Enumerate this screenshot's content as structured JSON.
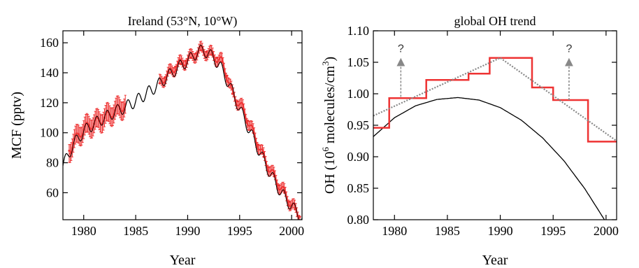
{
  "chart_data": [
    {
      "type": "line",
      "title": "Ireland (53°N, 10°W)",
      "xlabel": "Year",
      "ylabel": "MCF (pptv)",
      "xlim": [
        1978,
        2001
      ],
      "ylim": [
        42,
        168
      ],
      "xticks": [
        1980,
        1985,
        1990,
        1995,
        2000
      ],
      "yticks": [
        60,
        80,
        100,
        120,
        140,
        160
      ],
      "grid": false,
      "colors": {
        "model": "#000000",
        "observations": "#ee3333"
      },
      "series": [
        {
          "kind": "model-line",
          "x": [
            1978.0,
            1979.0,
            1980.0,
            1981.0,
            1982.0,
            1983.0,
            1984.0,
            1985.0,
            1986.0,
            1987.0,
            1988.0,
            1989.0,
            1990.0,
            1991.0,
            1991.5,
            1992.0,
            1993.0,
            1994.0,
            1995.0,
            1996.0,
            1997.0,
            1998.0,
            1999.0,
            2000.0,
            2001.0
          ],
          "values": [
            78,
            92,
            101,
            106,
            110,
            114,
            117,
            121,
            126,
            131,
            137,
            143,
            148,
            154,
            155,
            153,
            146,
            132,
            116,
            101,
            86,
            72,
            60,
            51,
            43
          ],
          "seasonal_amplitude": 4
        },
        {
          "kind": "observations",
          "segments": [
            {
              "x": [
                1978.6,
                1979.0,
                1979.5,
                1980.0,
                1980.5,
                1981.0,
                1981.5,
                1982.0,
                1982.5,
                1983.0,
                1983.5,
                1984.0
              ],
              "values": [
                88,
                93,
                99,
                102,
                105,
                106,
                108,
                110,
                112,
                115,
                116,
                119
              ],
              "err": 6
            },
            {
              "x": [
                1987.3,
                1987.8,
                1988.3,
                1988.8,
                1989.3,
                1989.8,
                1990.3,
                1990.8,
                1991.3,
                1991.8,
                1992.3,
                1992.8,
                1993.3,
                1993.8,
                1994.3,
                1994.8,
                1995.3,
                1995.8,
                1996.3,
                1996.8,
                1997.3,
                1997.8,
                1998.3,
                1998.8,
                1999.3,
                1999.8,
                2000.3,
                2000.8
              ],
              "values": [
                133,
                137,
                140,
                144,
                146,
                148,
                150,
                153,
                155,
                154,
                152,
                150,
                147,
                138,
                126,
                121,
                116,
                108,
                100,
                92,
                84,
                77,
                71,
                65,
                60,
                54,
                49,
                44
              ],
              "err": 3
            }
          ]
        }
      ]
    },
    {
      "type": "line",
      "title": "global OH trend",
      "xlabel": "Year",
      "ylabel": {
        "prefix": "OH (10",
        "sup1": "6",
        "middle": " molecules/cm",
        "sup2": "3",
        "suffix": ")"
      },
      "xlim": [
        1978,
        2001
      ],
      "ylim": [
        0.8,
        1.1
      ],
      "xticks": [
        1980,
        1985,
        1990,
        1995,
        2000
      ],
      "yticks": [
        "0.80",
        "0.85",
        "0.90",
        "0.95",
        "1.00",
        "1.05",
        "1.10"
      ],
      "grid": false,
      "colors": {
        "curve": "#000000",
        "step": "#ee3333",
        "trend": "#888888",
        "arrow": "#888888"
      },
      "series": [
        {
          "kind": "curve",
          "x": [
            1978,
            1980,
            1982,
            1984,
            1986,
            1988,
            1990,
            1992,
            1994,
            1996,
            1998,
            2000
          ],
          "values": [
            0.932,
            0.962,
            0.981,
            0.991,
            0.994,
            0.99,
            0.978,
            0.958,
            0.93,
            0.894,
            0.849,
            0.796
          ]
        },
        {
          "kind": "step",
          "x": [
            1978,
            1979.5,
            1979.5,
            1981,
            1981,
            1983,
            1983,
            1985,
            1985,
            1987,
            1987,
            1989,
            1989,
            1991.5,
            1991.5,
            1993,
            1993,
            1995,
            1995,
            1997,
            1997,
            1998.3,
            1998.3,
            2001
          ],
          "values": [
            0.946,
            0.946,
            0.993,
            0.993,
            0.993,
            0.993,
            1.022,
            1.022,
            1.022,
            1.022,
            1.032,
            1.032,
            1.057,
            1.057,
            1.057,
            1.057,
            1.01,
            1.01,
            0.99,
            0.99,
            0.99,
            0.99,
            0.924,
            0.924
          ]
        },
        {
          "kind": "trend",
          "x": [
            1978,
            1990,
            2001
          ],
          "values": [
            0.965,
            1.057,
            0.925
          ]
        }
      ],
      "annotations": [
        {
          "text": "?",
          "x": 1980.6,
          "from": 0.995,
          "to": 1.057
        },
        {
          "text": "?",
          "x": 1996.5,
          "from": 0.99,
          "to": 1.057
        }
      ]
    }
  ]
}
